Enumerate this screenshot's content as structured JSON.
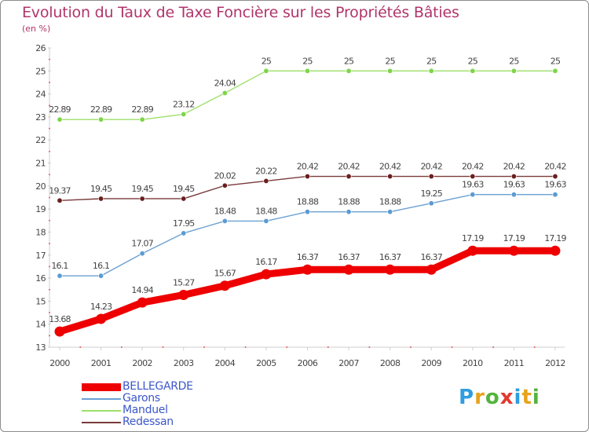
{
  "header": {
    "title": "Evolution du Taux de Taxe Foncière sur les Propriétés Bâties",
    "subtitle": "(en %)"
  },
  "logo": {
    "text": "Proxiti",
    "letters": [
      {
        "ch": "P",
        "color": "#2f9de0"
      },
      {
        "ch": "r",
        "color": "#e8a21b"
      },
      {
        "ch": "o",
        "color": "#53b43d"
      },
      {
        "ch": "x",
        "color": "#e23a2f"
      },
      {
        "ch": "i",
        "color": "#2f9de0"
      },
      {
        "ch": "t",
        "color": "#e8a21b"
      },
      {
        "ch": "i",
        "color": "#53b43d"
      }
    ]
  },
  "chart_data": {
    "type": "line",
    "title": "Evolution du Taux de Taxe Foncière sur les Propriétés Bâties",
    "ylabel": "(en %)",
    "xlabel": "",
    "x": [
      "2000",
      "2001",
      "2002",
      "2003",
      "2004",
      "2005",
      "2006",
      "2007",
      "2008",
      "2009",
      "2010",
      "2011",
      "2012"
    ],
    "ylim": [
      13,
      26
    ],
    "yticks": [
      13,
      14,
      15,
      16,
      17,
      18,
      19,
      20,
      21,
      22,
      23,
      24,
      25,
      26
    ],
    "grid": false,
    "legend_position": "bottom-left",
    "series": [
      {
        "name": "BELLEGARDE",
        "color": "#ee0000",
        "marker_color": "#ee0000",
        "emphasis": true,
        "values": [
          13.68,
          14.23,
          14.94,
          15.27,
          15.67,
          16.17,
          16.37,
          16.37,
          16.37,
          16.37,
          17.19,
          17.19,
          17.19
        ],
        "labels": [
          "13.68",
          "14.23",
          "14.94",
          "15.27",
          "15.67",
          "16.17",
          "16.37",
          "16.37",
          "16.37",
          "16.37",
          "17.19",
          "17.19",
          "17.19"
        ]
      },
      {
        "name": "Garons",
        "color": "#6aa0d2",
        "marker_color": "#5b9bd3",
        "emphasis": false,
        "values": [
          16.1,
          16.1,
          17.07,
          17.95,
          18.48,
          18.48,
          18.88,
          18.88,
          18.88,
          19.25,
          19.63,
          19.63,
          19.63
        ],
        "labels": [
          "16.1",
          "16.1",
          "17.07",
          "17.95",
          "18.48",
          "18.48",
          "18.88",
          "18.88",
          "18.88",
          "19.25",
          "19.63",
          "19.63",
          "19.63"
        ]
      },
      {
        "name": "Manduel",
        "color": "#9ee06a",
        "marker_color": "#7ed44a",
        "emphasis": false,
        "values": [
          22.89,
          22.89,
          22.89,
          23.12,
          24.04,
          25,
          25,
          25,
          25,
          25,
          25,
          25,
          25
        ],
        "labels": [
          "22.89",
          "22.89",
          "22.89",
          "23.12",
          "24.04",
          "25",
          "25",
          "25",
          "25",
          "25",
          "25",
          "25",
          "25"
        ]
      },
      {
        "name": "Redessan",
        "color": "#7a3a3a",
        "marker_color": "#6b1f1f",
        "emphasis": false,
        "values": [
          19.37,
          19.45,
          19.45,
          19.45,
          20.02,
          20.22,
          20.42,
          20.42,
          20.42,
          20.42,
          20.42,
          20.42,
          20.42
        ],
        "labels": [
          "19.37",
          "19.45",
          "19.45",
          "19.45",
          "20.02",
          "20.22",
          "20.42",
          "20.42",
          "20.42",
          "20.42",
          "20.42",
          "20.42",
          "20.42"
        ]
      }
    ]
  }
}
